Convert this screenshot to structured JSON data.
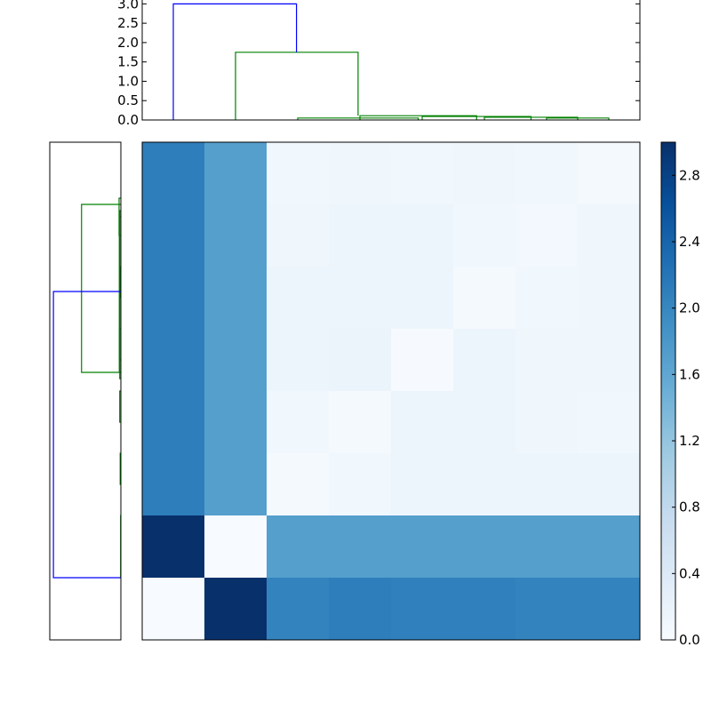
{
  "chart_data": [
    {
      "type": "dendrogram",
      "orientation": "top",
      "ylim": [
        0,
        3.1
      ],
      "yticks": [
        "0.0",
        "0.5",
        "1.0",
        "1.5",
        "2.0",
        "2.5",
        "3.0"
      ],
      "leaf_order": [
        0,
        1,
        2,
        3,
        4,
        5,
        6,
        7
      ],
      "links": [
        {
          "a": 6,
          "b": 7,
          "h": 0.05,
          "color": "#008000"
        },
        {
          "a": 5,
          "b": 6.5,
          "h": 0.07,
          "color": "#008000"
        },
        {
          "a": 4,
          "b": 5.75,
          "h": 0.09,
          "color": "#008000"
        },
        {
          "a": 3,
          "b": 4.875,
          "h": 0.11,
          "color": "#008000"
        },
        {
          "a": 2,
          "b": 3.9375,
          "h": 0.05,
          "color": "#008000"
        },
        {
          "a": 1,
          "b": 2.97,
          "h": 1.75,
          "color": "#008000"
        },
        {
          "a": 0,
          "b": 1.98,
          "h": 3.0,
          "color": "#0000ff"
        }
      ]
    },
    {
      "type": "dendrogram",
      "orientation": "left",
      "xlim": [
        3.1,
        0
      ],
      "links": [
        {
          "a": 0.5,
          "b": 1.5,
          "h": 0.01,
          "color": "#008000"
        },
        {
          "a": 2,
          "b": 2.5,
          "h": 0.03,
          "color": "#008000"
        },
        {
          "a": 3,
          "b": 3.5,
          "h": 0.05,
          "color": "#008000"
        },
        {
          "a": 4,
          "b": 4.5,
          "h": 0.06,
          "color": "#008000"
        },
        {
          "a": 5,
          "b": 5.5,
          "h": 0.03,
          "color": "#008000"
        },
        {
          "a": 6,
          "b": 6.6,
          "h": 0.08,
          "color": "#008000"
        },
        {
          "a": 3.8,
          "b": 6.3,
          "h": 0.07,
          "color": "#008000"
        },
        {
          "a": 3.7,
          "b": 6.4,
          "h": 0.05,
          "color": "#008000"
        },
        {
          "a": 3.8,
          "b": 6.5,
          "h": 1.75,
          "color": "#008000"
        },
        {
          "a": 0.5,
          "b": 5.1,
          "h": 3.0,
          "color": "#0000ff"
        }
      ]
    },
    {
      "type": "heatmap",
      "rows": 8,
      "cols": 8,
      "values": [
        [
          2.1,
          1.7,
          0.1,
          0.12,
          0.1,
          0.12,
          0.1,
          0.05
        ],
        [
          2.1,
          1.7,
          0.12,
          0.15,
          0.15,
          0.1,
          0.08,
          0.12
        ],
        [
          2.1,
          1.7,
          0.15,
          0.15,
          0.15,
          0.05,
          0.1,
          0.12
        ],
        [
          2.1,
          1.7,
          0.15,
          0.18,
          0.02,
          0.15,
          0.12,
          0.12
        ],
        [
          2.1,
          1.7,
          0.1,
          0.05,
          0.15,
          0.15,
          0.12,
          0.1
        ],
        [
          2.1,
          1.7,
          0.05,
          0.1,
          0.15,
          0.15,
          0.15,
          0.15
        ],
        [
          3.0,
          0.0,
          1.7,
          1.7,
          1.7,
          1.7,
          1.7,
          1.7
        ],
        [
          0.0,
          3.0,
          2.05,
          2.1,
          2.08,
          2.08,
          2.05,
          2.05
        ]
      ],
      "vmin": 0,
      "vmax": 3.0,
      "colormap": "Blues"
    },
    {
      "type": "colorbar",
      "vmin": 0,
      "vmax": 3.0,
      "ticks": [
        "0.0",
        "0.4",
        "0.8",
        "1.2",
        "1.6",
        "2.0",
        "2.4",
        "2.8"
      ]
    }
  ]
}
